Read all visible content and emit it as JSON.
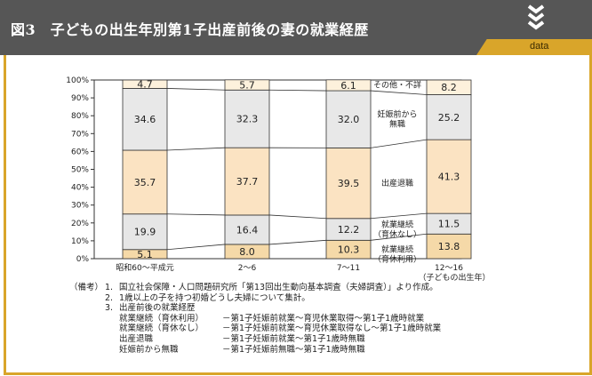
{
  "header": {
    "title": "図3　子どもの出生年別第1子出産前後の妻の就業経歴",
    "tab_label": "data",
    "colors": {
      "band": "#565656",
      "accent": "#d9a52a"
    }
  },
  "chart_data": {
    "type": "bar",
    "stacked": "percent",
    "categories": [
      "昭和60～平成元",
      "2～6",
      "7～11",
      "12～16"
    ],
    "category_sublabels": [
      "",
      "",
      "",
      "（子どもの出生年）"
    ],
    "series": [
      {
        "name": "就業継続（育休利用）",
        "values": [
          5.1,
          8.0,
          10.3,
          13.8
        ],
        "color": "#f5d9a8"
      },
      {
        "name": "就業継続（育休なし）",
        "values": [
          19.9,
          16.4,
          12.2,
          11.5
        ],
        "color": "#e6e6e6"
      },
      {
        "name": "出産退職",
        "values": [
          35.7,
          37.7,
          39.5,
          41.3
        ],
        "color": "#fbe3c2"
      },
      {
        "name": "妊娠前から無職",
        "values": [
          34.6,
          32.3,
          32.0,
          25.2
        ],
        "color": "#e8e8e8"
      },
      {
        "name": "その他・不詳",
        "values": [
          4.7,
          5.7,
          6.1,
          8.2
        ],
        "color": "#fdf1dc"
      }
    ],
    "series_labels": [
      [
        "就業継続",
        "（育休利用）"
      ],
      [
        "就業継続",
        "（育休なし）"
      ],
      [
        "出産退職"
      ],
      [
        "妊娠前から",
        "無職"
      ],
      [
        "その他・不詳"
      ]
    ],
    "yticks": [
      "0%",
      "10%",
      "20%",
      "30%",
      "40%",
      "50%",
      "60%",
      "70%",
      "80%",
      "90%",
      "100%"
    ],
    "ylim": [
      0,
      100
    ],
    "grid": false,
    "connector_lines": true
  },
  "notes": {
    "heading": "（備考）",
    "items": [
      {
        "num": "1.",
        "text": "国立社会保障・人口問題研究所「第13回出生動向基本調査（夫婦調査）」より作成。"
      },
      {
        "num": "2.",
        "text": "1歳以上の子を持つ初婚どうし夫婦について集計。"
      },
      {
        "num": "3.",
        "text": "出産前後の就業経歴"
      }
    ],
    "definitions": [
      {
        "term": "就業継続（育休利用）",
        "def": "－第1子妊娠前就業～育児休業取得～第1子1歳時就業"
      },
      {
        "term": "就業継続（育休なし）",
        "def": "－第1子妊娠前就業～育児休業取得なし～第1子1歳時就業"
      },
      {
        "term": "出産退職",
        "def": "－第1子妊娠前就業～第1子1歳時無職"
      },
      {
        "term": "妊娠前から無職",
        "def": "－第1子妊娠前無職～第1子1歳時無職"
      }
    ]
  }
}
